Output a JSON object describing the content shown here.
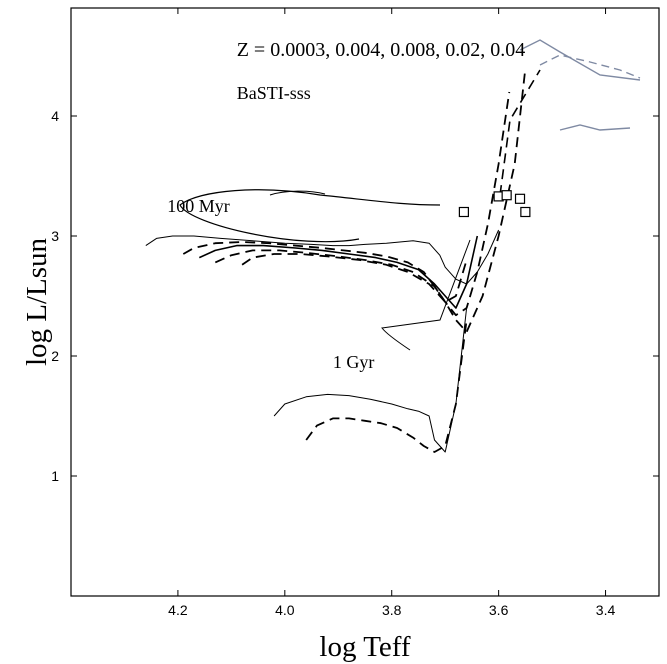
{
  "chart_data": {
    "type": "line",
    "title": "",
    "xlabel": "log Teff",
    "ylabel": "log L/Lsun",
    "xlim": [
      4.4,
      3.3
    ],
    "ylim": [
      0.0,
      4.9
    ],
    "x_reversed": true,
    "x_ticks": [
      4.2,
      4.0,
      3.8,
      3.6,
      3.4
    ],
    "x_tick_labels": [
      "4.2",
      "4.0",
      "3.8",
      "3.6",
      "3.4"
    ],
    "y_ticks": [
      1,
      2,
      3,
      4
    ],
    "y_tick_labels": [
      "1",
      "2",
      "3",
      "4"
    ],
    "grid": false,
    "legend": "none",
    "annotations": [
      {
        "text": "Z = 0.0003, 0.004, 0.008, 0.02, 0.04",
        "x": 4.09,
        "y": 4.5,
        "size": 20
      },
      {
        "text": "BaSTI-sss",
        "x": 4.09,
        "y": 4.14,
        "size": 18
      },
      {
        "text": "100 Myr",
        "x": 4.22,
        "y": 3.2,
        "size": 18
      },
      {
        "text": "1 Gyr",
        "x": 3.91,
        "y": 1.9,
        "size": 18
      }
    ],
    "series": [
      {
        "age": "100 Myr",
        "style": "solid-thin",
        "x": [
          4.26,
          4.24,
          4.21,
          4.17,
          4.12,
          4.06,
          4.0,
          3.95,
          3.91,
          3.88,
          3.85,
          3.81,
          3.76,
          3.73,
          3.71,
          3.7,
          3.68,
          3.66,
          3.64,
          3.62,
          3.6
        ],
        "y": [
          2.92,
          2.98,
          3.0,
          3.0,
          2.98,
          2.96,
          2.94,
          2.93,
          2.92,
          2.92,
          2.93,
          2.94,
          2.96,
          2.94,
          2.84,
          2.74,
          2.64,
          2.6,
          2.7,
          2.85,
          3.05
        ]
      },
      {
        "age": "100 Myr",
        "style": "dashed-thick",
        "x": [
          4.19,
          4.17,
          4.13,
          4.08,
          4.03,
          3.98,
          3.93,
          3.89,
          3.85,
          3.81,
          3.77,
          3.74,
          3.72,
          3.7,
          3.68,
          3.66
        ],
        "y": [
          2.85,
          2.9,
          2.94,
          2.95,
          2.94,
          2.92,
          2.9,
          2.88,
          2.86,
          2.83,
          2.78,
          2.7,
          2.58,
          2.45,
          2.5,
          2.8
        ]
      },
      {
        "age": "100 Myr",
        "style": "solid-thick",
        "x": [
          4.16,
          4.13,
          4.09,
          4.04,
          3.98,
          3.93,
          3.88,
          3.83,
          3.79,
          3.75,
          3.72,
          3.7,
          3.68,
          3.66,
          3.64
        ],
        "y": [
          2.82,
          2.88,
          2.92,
          2.92,
          2.9,
          2.88,
          2.85,
          2.82,
          2.78,
          2.72,
          2.6,
          2.5,
          2.4,
          2.6,
          3.0
        ]
      },
      {
        "age": "100 Myr",
        "style": "dashed-thick",
        "x": [
          4.13,
          4.1,
          4.06,
          4.01,
          3.96,
          3.9,
          3.85,
          3.8,
          3.76,
          3.72,
          3.7,
          3.68,
          3.66,
          3.64,
          3.62,
          3.6,
          3.58
        ],
        "y": [
          2.78,
          2.84,
          2.88,
          2.88,
          2.86,
          2.83,
          2.8,
          2.76,
          2.7,
          2.58,
          2.45,
          2.34,
          2.4,
          2.7,
          3.1,
          3.6,
          4.2
        ]
      },
      {
        "age": "100 Myr",
        "style": "dashed-thick",
        "x": [
          4.08,
          4.06,
          4.02,
          3.97,
          3.92,
          3.86,
          3.81,
          3.77,
          3.73,
          3.7,
          3.68,
          3.66,
          3.63,
          3.6,
          3.57,
          3.55
        ],
        "y": [
          2.76,
          2.82,
          2.85,
          2.85,
          2.83,
          2.8,
          2.76,
          2.7,
          2.6,
          2.45,
          2.3,
          2.2,
          2.5,
          3.0,
          3.6,
          4.4
        ]
      },
      {
        "age": "1 Gyr",
        "style": "solid-thin",
        "x": [
          4.02,
          4.0,
          3.96,
          3.92,
          3.88,
          3.84,
          3.8,
          3.77,
          3.75,
          3.73,
          3.72,
          3.7,
          3.68,
          3.66
        ],
        "y": [
          1.5,
          1.6,
          1.66,
          1.68,
          1.67,
          1.64,
          1.6,
          1.56,
          1.54,
          1.5,
          1.3,
          1.2,
          1.6,
          2.4
        ]
      },
      {
        "age": "1 Gyr",
        "style": "dashed-thick",
        "x": [
          3.96,
          3.94,
          3.91,
          3.88,
          3.85,
          3.82,
          3.79,
          3.76,
          3.74,
          3.72,
          3.7,
          3.68,
          3.66
        ],
        "y": [
          1.3,
          1.42,
          1.48,
          1.48,
          1.46,
          1.44,
          1.4,
          1.32,
          1.25,
          1.2,
          1.25,
          1.6,
          2.3
        ]
      }
    ],
    "rgb_endpoints": [
      {
        "x": 3.665,
        "y": 3.2
      },
      {
        "x": 3.6,
        "y": 3.33
      },
      {
        "x": 3.585,
        "y": 3.34
      },
      {
        "x": 3.56,
        "y": 3.31
      },
      {
        "x": 3.55,
        "y": 3.2
      }
    ]
  }
}
